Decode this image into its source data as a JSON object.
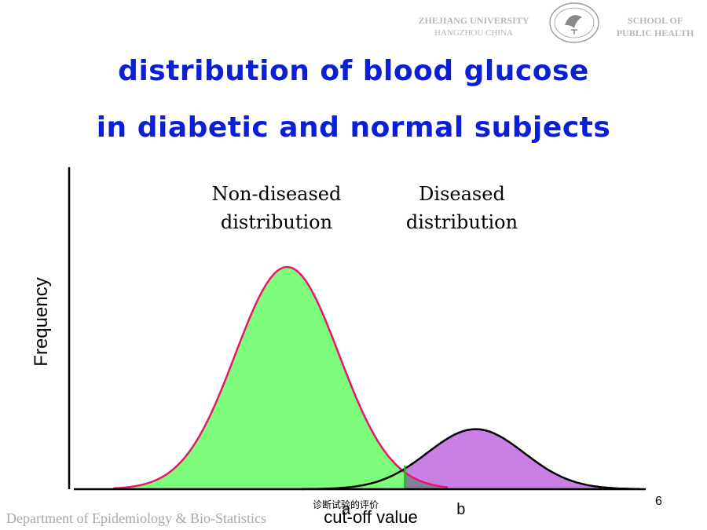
{
  "header": {
    "left_line1": "ZHEJIANG UNIVERSITY",
    "left_line2": "HANGZHOU CHINA",
    "right_line1": "SCHOOL OF",
    "right_line2": "PUBLIC HEALTH"
  },
  "title": {
    "line1": "distribution of blood glucose",
    "line2": "in diabetic and normal subjects"
  },
  "footer": {
    "department": "Department of Epidemiology & Bio-Statistics",
    "page_number": "6",
    "watermark": "诊断试验的评价"
  },
  "colors": {
    "title": "#0a1fd6",
    "non_diseased_fill": "#7dfd7b",
    "non_diseased_line": "#e8156f",
    "diseased_fill": "#c97fe4",
    "diseased_line": "#000000",
    "overlap_fill": "#7a8190",
    "cutoff_line": "#1fb81f"
  },
  "chart_data": {
    "type": "area",
    "ylabel": "Frequency",
    "xlabel": "cut-off value",
    "x_markers": [
      {
        "label": "a",
        "x": 4.7
      },
      {
        "label": "b",
        "x": 6.65
      }
    ],
    "cutoff": {
      "label": "cut-off value",
      "x": 5.7
    },
    "xlim": [
      0,
      10
    ],
    "ylim": [
      0,
      1.05
    ],
    "grid": false,
    "series": [
      {
        "label_line1": "Non-diseased",
        "label_line2": "distribution",
        "mean": 3.7,
        "sd": 0.88,
        "peak": 1.0
      },
      {
        "label_line1": "Diseased",
        "label_line2": "distribution",
        "mean": 6.9,
        "sd": 0.82,
        "peak": 0.27
      }
    ]
  }
}
